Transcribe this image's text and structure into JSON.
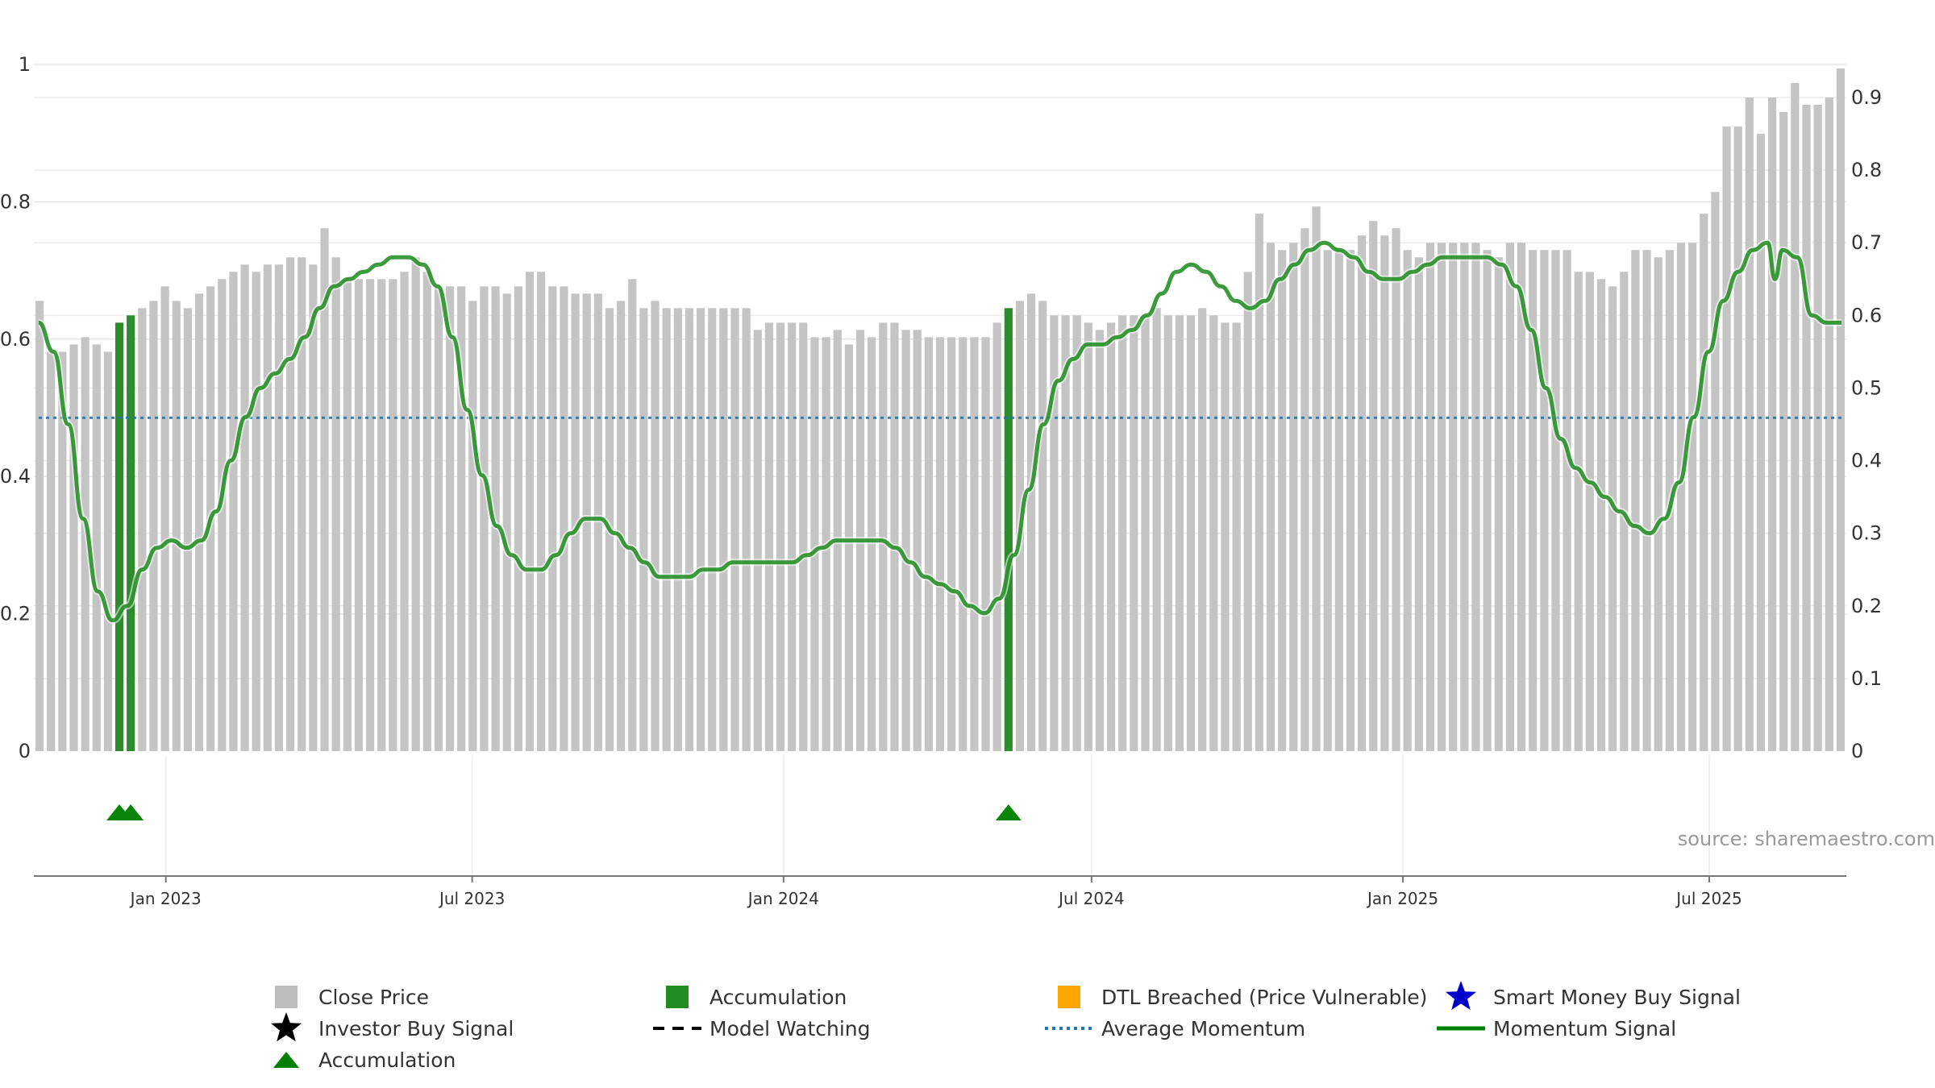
{
  "chart_data": {
    "type": "bar",
    "left_axis": {
      "ylim": [
        0,
        1
      ],
      "ticks": [
        0,
        0.2,
        0.4,
        0.6,
        0.8,
        1
      ],
      "tick_labels": [
        "0",
        "0.2",
        "0.4",
        "0.6",
        "0.8",
        "1"
      ]
    },
    "right_axis": {
      "ylim": [
        0,
        0.9
      ],
      "ticks": [
        0,
        0.1,
        0.2,
        0.3,
        0.4,
        0.5,
        0.6,
        0.7,
        0.8,
        0.9
      ],
      "tick_labels": [
        "0",
        "0.1",
        "0.2",
        "0.3",
        "0.4",
        "0.5",
        "0.6",
        "0.7",
        "0.8",
        "0.9"
      ]
    },
    "x_axis": {
      "start": "2022-10-15",
      "end": "2025-09-20",
      "ticks": [
        {
          "date": "2023-01-01",
          "label": "Jan 2023"
        },
        {
          "date": "2023-07-01",
          "label": "Jul 2023"
        },
        {
          "date": "2024-01-01",
          "label": "Jan 2024"
        },
        {
          "date": "2024-07-01",
          "label": "Jul 2024"
        },
        {
          "date": "2025-01-01",
          "label": "Jan 2025"
        },
        {
          "date": "2025-07-01",
          "label": "Jul 2025"
        }
      ]
    },
    "close_price": [
      0.62,
      0.55,
      0.55,
      0.56,
      0.57,
      0.56,
      0.55,
      0.59,
      0.6,
      0.61,
      0.62,
      0.64,
      0.62,
      0.61,
      0.63,
      0.64,
      0.65,
      0.66,
      0.67,
      0.66,
      0.67,
      0.67,
      0.68,
      0.68,
      0.67,
      0.72,
      0.68,
      0.65,
      0.65,
      0.65,
      0.65,
      0.65,
      0.66,
      0.68,
      0.66,
      0.64,
      0.64,
      0.64,
      0.62,
      0.64,
      0.64,
      0.63,
      0.64,
      0.66,
      0.66,
      0.64,
      0.64,
      0.63,
      0.63,
      0.63,
      0.61,
      0.62,
      0.65,
      0.61,
      0.62,
      0.61,
      0.61,
      0.61,
      0.61,
      0.61,
      0.61,
      0.61,
      0.61,
      0.58,
      0.59,
      0.59,
      0.59,
      0.59,
      0.57,
      0.57,
      0.58,
      0.56,
      0.58,
      0.57,
      0.59,
      0.59,
      0.58,
      0.58,
      0.57,
      0.57,
      0.57,
      0.57,
      0.57,
      0.57,
      0.59,
      0.61,
      0.62,
      0.63,
      0.62,
      0.6,
      0.6,
      0.6,
      0.59,
      0.58,
      0.59,
      0.6,
      0.6,
      0.6,
      0.61,
      0.6,
      0.6,
      0.6,
      0.61,
      0.6,
      0.59,
      0.59,
      0.66,
      0.74,
      0.7,
      0.69,
      0.7,
      0.72,
      0.75,
      0.69,
      0.69,
      0.69,
      0.71,
      0.73,
      0.71,
      0.72,
      0.69,
      0.68,
      0.7,
      0.7,
      0.7,
      0.7,
      0.7,
      0.69,
      0.68,
      0.7,
      0.7,
      0.69,
      0.69,
      0.69,
      0.69,
      0.66,
      0.66,
      0.65,
      0.64,
      0.66,
      0.69,
      0.69,
      0.68,
      0.69,
      0.7,
      0.7,
      0.74,
      0.77,
      0.86,
      0.86,
      0.9,
      0.85,
      0.9,
      0.88,
      0.92,
      0.89,
      0.89,
      0.9,
      0.94
    ],
    "accumulation_bars": [
      7,
      8,
      85
    ],
    "accumulation_markers": [
      7,
      8,
      85
    ],
    "momentum_signal": [
      [
        0,
        0.59
      ],
      [
        2,
        0.55
      ],
      [
        4,
        0.45
      ],
      [
        6,
        0.32
      ],
      [
        8,
        0.22
      ],
      [
        10,
        0.18
      ],
      [
        12,
        0.2
      ],
      [
        14,
        0.25
      ],
      [
        16,
        0.28
      ],
      [
        18,
        0.29
      ],
      [
        20,
        0.28
      ],
      [
        22,
        0.29
      ],
      [
        24,
        0.33
      ],
      [
        26,
        0.4
      ],
      [
        28,
        0.46
      ],
      [
        30,
        0.5
      ],
      [
        32,
        0.52
      ],
      [
        34,
        0.54
      ],
      [
        36,
        0.57
      ],
      [
        38,
        0.61
      ],
      [
        40,
        0.64
      ],
      [
        42,
        0.65
      ],
      [
        44,
        0.66
      ],
      [
        46,
        0.67
      ],
      [
        48,
        0.68
      ],
      [
        50,
        0.68
      ],
      [
        52,
        0.67
      ],
      [
        54,
        0.64
      ],
      [
        56,
        0.57
      ],
      [
        58,
        0.47
      ],
      [
        60,
        0.38
      ],
      [
        62,
        0.31
      ],
      [
        64,
        0.27
      ],
      [
        66,
        0.25
      ],
      [
        68,
        0.25
      ],
      [
        70,
        0.27
      ],
      [
        72,
        0.3
      ],
      [
        74,
        0.32
      ],
      [
        76,
        0.32
      ],
      [
        78,
        0.3
      ],
      [
        80,
        0.28
      ],
      [
        82,
        0.26
      ],
      [
        84,
        0.24
      ],
      [
        86,
        0.24
      ],
      [
        88,
        0.24
      ],
      [
        90,
        0.25
      ],
      [
        92,
        0.25
      ],
      [
        94,
        0.26
      ],
      [
        96,
        0.26
      ],
      [
        98,
        0.26
      ],
      [
        100,
        0.26
      ],
      [
        102,
        0.26
      ],
      [
        104,
        0.27
      ],
      [
        106,
        0.28
      ],
      [
        108,
        0.29
      ],
      [
        110,
        0.29
      ],
      [
        112,
        0.29
      ],
      [
        114,
        0.29
      ],
      [
        116,
        0.28
      ],
      [
        118,
        0.26
      ],
      [
        120,
        0.24
      ],
      [
        122,
        0.23
      ],
      [
        124,
        0.22
      ],
      [
        126,
        0.2
      ],
      [
        128,
        0.19
      ],
      [
        130,
        0.21
      ],
      [
        132,
        0.27
      ],
      [
        134,
        0.36
      ],
      [
        136,
        0.45
      ],
      [
        138,
        0.51
      ],
      [
        140,
        0.54
      ],
      [
        142,
        0.56
      ],
      [
        144,
        0.56
      ],
      [
        146,
        0.57
      ],
      [
        148,
        0.58
      ],
      [
        150,
        0.6
      ],
      [
        152,
        0.63
      ],
      [
        154,
        0.66
      ],
      [
        156,
        0.67
      ],
      [
        158,
        0.66
      ],
      [
        160,
        0.64
      ],
      [
        162,
        0.62
      ],
      [
        164,
        0.61
      ],
      [
        166,
        0.62
      ],
      [
        168,
        0.65
      ],
      [
        170,
        0.67
      ],
      [
        172,
        0.69
      ],
      [
        174,
        0.7
      ],
      [
        176,
        0.69
      ],
      [
        178,
        0.68
      ],
      [
        180,
        0.66
      ],
      [
        182,
        0.65
      ],
      [
        184,
        0.65
      ],
      [
        186,
        0.66
      ],
      [
        188,
        0.67
      ],
      [
        190,
        0.68
      ],
      [
        192,
        0.68
      ],
      [
        194,
        0.68
      ],
      [
        196,
        0.68
      ],
      [
        198,
        0.67
      ],
      [
        200,
        0.64
      ],
      [
        202,
        0.58
      ],
      [
        204,
        0.5
      ],
      [
        206,
        0.43
      ],
      [
        208,
        0.39
      ],
      [
        210,
        0.37
      ],
      [
        212,
        0.35
      ],
      [
        214,
        0.33
      ],
      [
        216,
        0.31
      ],
      [
        218,
        0.3
      ],
      [
        220,
        0.32
      ],
      [
        222,
        0.37
      ],
      [
        224,
        0.46
      ],
      [
        226,
        0.55
      ],
      [
        228,
        0.62
      ],
      [
        230,
        0.66
      ],
      [
        232,
        0.69
      ],
      [
        234,
        0.7
      ],
      [
        235,
        0.65
      ],
      [
        236,
        0.69
      ],
      [
        238,
        0.68
      ],
      [
        240,
        0.6
      ],
      [
        242,
        0.59
      ],
      [
        244,
        0.59
      ]
    ],
    "average_momentum": 0.459,
    "source": "source: sharemaestro.com",
    "legend": [
      {
        "label": "Close Price",
        "symbol": "square",
        "color": "#bdbdbd"
      },
      {
        "label": "Accumulation",
        "symbol": "square",
        "color": "#228b22"
      },
      {
        "label": "DTL Breached (Price Vulnerable)",
        "symbol": "square",
        "color": "#ffa500"
      },
      {
        "label": "Smart Money Buy Signal",
        "symbol": "star",
        "color": "#0000cc"
      },
      {
        "label": "Investor Buy Signal",
        "symbol": "star",
        "color": "#000000"
      },
      {
        "label": "Model Watching",
        "symbol": "dash",
        "color": "#000000"
      },
      {
        "label": "Average Momentum",
        "symbol": "dot",
        "color": "#1f77b4"
      },
      {
        "label": "Momentum Signal",
        "symbol": "line",
        "color": "#008000"
      },
      {
        "label": "Accumulation",
        "symbol": "triangle",
        "color": "#008000"
      }
    ]
  }
}
